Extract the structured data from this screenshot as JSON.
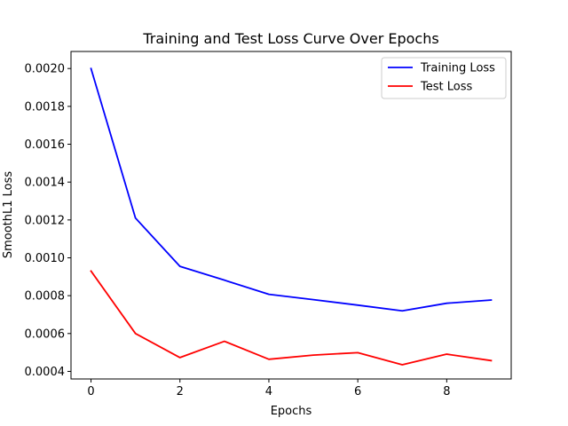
{
  "chart_data": {
    "type": "line",
    "title": "Training and Test Loss Curve Over Epochs",
    "xlabel": "Epochs",
    "ylabel": "SmoothL1 Loss",
    "x": [
      0,
      1,
      2,
      3,
      4,
      5,
      6,
      7,
      8,
      9
    ],
    "xlim": [
      -0.45,
      9.45
    ],
    "ylim": [
      0.00036,
      0.00209
    ],
    "xticks": [
      0,
      2,
      4,
      6,
      8
    ],
    "xtick_labels": [
      "0",
      "2",
      "4",
      "6",
      "8"
    ],
    "yticks": [
      0.0004,
      0.0006,
      0.0008,
      0.001,
      0.0012,
      0.0014,
      0.0016,
      0.0018,
      0.002
    ],
    "ytick_labels": [
      "0.0004",
      "0.0006",
      "0.0008",
      "0.0010",
      "0.0012",
      "0.0014",
      "0.0016",
      "0.0018",
      "0.0020"
    ],
    "grid": false,
    "legend_position": "top-right",
    "series": [
      {
        "name": "Training Loss",
        "color": "#0000ff",
        "values": [
          0.002,
          0.00121,
          0.000955,
          0.000882,
          0.000807,
          0.000779,
          0.00075,
          0.00072,
          0.00076,
          0.000777
        ]
      },
      {
        "name": "Test Loss",
        "color": "#ff0000",
        "values": [
          0.00093,
          0.0006,
          0.000473,
          0.000559,
          0.000464,
          0.000486,
          0.000499,
          0.000435,
          0.000491,
          0.000457
        ]
      }
    ]
  }
}
